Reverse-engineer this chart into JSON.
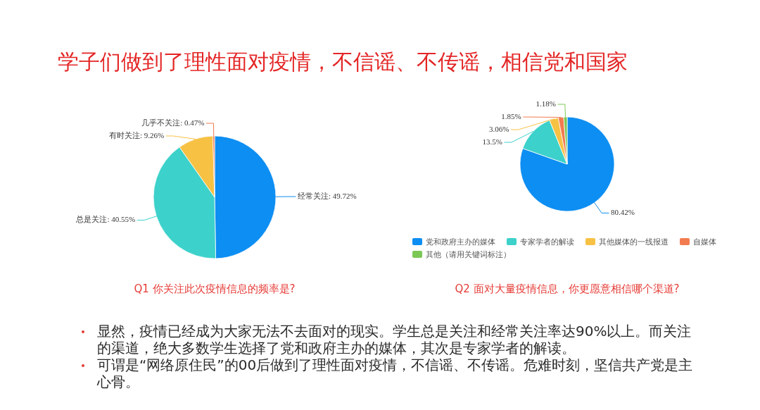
{
  "chart_data": [
    {
      "type": "other",
      "title": "学子们做到了理性面对疫情，不信谣、不传谣，相信党和国家"
    },
    {
      "type": "pie",
      "title": "Q1 你关注此次疫情信息的频率是?",
      "values": [
        49.72,
        40.55,
        9.26,
        0.47
      ],
      "colors": [
        "#0d8ef2",
        "#3dd1cb",
        "#f7c144",
        "#f27b4f"
      ],
      "value_labels": [
        "经常关注: 49.72%",
        "总是关注: 40.55%",
        "有时关注: 9.26%",
        "几乎不关注: 0.47%"
      ],
      "legend": false
    },
    {
      "type": "pie",
      "title": "Q2 面对大量疫情信息，你更愿意相信哪个渠道?",
      "categories": [
        "党和政府主办的媒体",
        "专家学者的解读",
        "其他媒体的一线报道",
        "自媒体",
        "其他（请用关键词标注）"
      ],
      "values": [
        80.42,
        13.5,
        3.06,
        1.85,
        1.18
      ],
      "colors": [
        "#0d8ef2",
        "#3dd1cb",
        "#f7c144",
        "#f27b4f",
        "#7cc855"
      ],
      "value_labels": [
        "80.42%",
        "13.5%",
        "3.06%",
        "1.85%",
        "1.18%"
      ],
      "legend": "bottom"
    },
    {
      "type": "other",
      "annotations": [
        "显然，疫情已经成为大家无法不去面对的现实。学生总是关注和经常关注率达90%以上。而关注的渠道，绝大多数学生选择了党和政府主办的媒体，其次是专家学者的解读。",
        "可谓是“网络原住民”的00后做到了理性面对疫情，不信谣、不传谣。危难时刻，坚信共产党是主心骨。"
      ]
    }
  ]
}
